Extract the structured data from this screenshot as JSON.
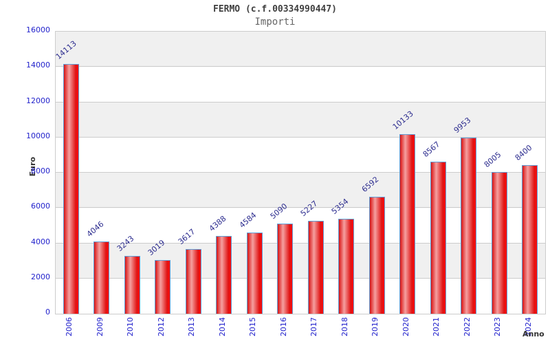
{
  "chart_data": {
    "type": "bar",
    "title": "FERMO (c.f.00334990447)",
    "subtitle": "Importi",
    "xlabel": "Anno",
    "ylabel": "Euro",
    "categories": [
      "2006",
      "2009",
      "2010",
      "2012",
      "2013",
      "2014",
      "2015",
      "2016",
      "2017",
      "2018",
      "2019",
      "2020",
      "2021",
      "2022",
      "2023",
      "2024"
    ],
    "values": [
      14113,
      4046,
      3243,
      3019,
      3617,
      4388,
      4584,
      5090,
      5227,
      5354,
      6592,
      10133,
      8567,
      9953,
      8005,
      8400
    ],
    "ylim": [
      0,
      16000
    ],
    "yticks": [
      0,
      2000,
      4000,
      6000,
      8000,
      10000,
      12000,
      14000,
      16000
    ],
    "grid": "horizontal",
    "legend": "none",
    "value_labels": "rotated above bars",
    "colors": {
      "bar_fill_edge": "#e01212",
      "bar_fill_highlight": "#f5a0a0",
      "bar_border": "#5d9ed7",
      "axis_tick_label": "#2222cc",
      "value_label": "#2d2d8f",
      "band_alternate": "#f0f0f0",
      "gridline": "#cccccc",
      "title_text": "#404040",
      "subtitle_text": "#666666",
      "axis_title_text": "#333333"
    }
  }
}
